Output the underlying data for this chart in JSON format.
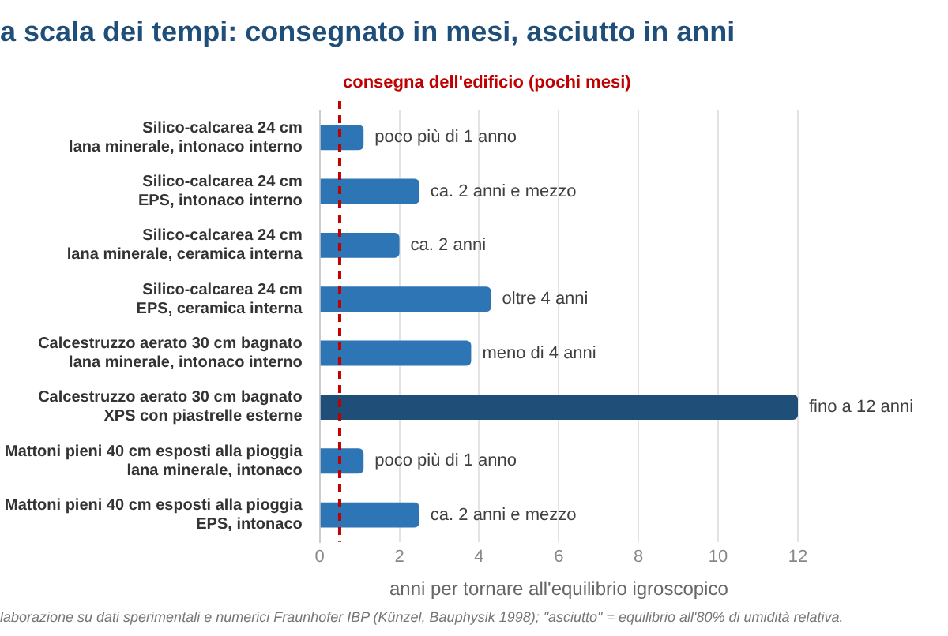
{
  "chart_data": {
    "type": "bar",
    "orientation": "horizontal",
    "title": "a scala dei tempi: consegnato in mesi, asciutto in anni",
    "categories": [
      "Silico-calcarea 24 cm\nlana minerale, intonaco interno",
      "Silico-calcarea 24 cm\nEPS, intonaco interno",
      "Silico-calcarea 24 cm\nlana minerale, ceramica interna",
      "Silico-calcarea 24 cm\nEPS, ceramica interna",
      "Calcestruzzo aerato 30 cm bagnato\nlana minerale, intonaco interno",
      "Calcestruzzo aerato 30 cm bagnato\nXPS con piastrelle esterne",
      "Mattoni pieni 40 cm esposti alla pioggia\nlana minerale, intonaco",
      "Mattoni pieni 40 cm esposti alla pioggia\nEPS, intonaco"
    ],
    "values": [
      1.1,
      2.5,
      2.0,
      4.3,
      3.8,
      12,
      1.1,
      2.5
    ],
    "colors": [
      "#2e75b6",
      "#2e75b6",
      "#2e75b6",
      "#2e75b6",
      "#2e75b6",
      "#1f4e79",
      "#2e75b6",
      "#2e75b6"
    ],
    "value_labels": [
      "poco più di 1 anno",
      "ca. 2 anni e mezzo",
      "ca. 2 anni",
      "oltre 4 anni",
      "meno di 4 anni",
      "fino a 12 anni",
      "poco più di 1 anno",
      "ca. 2 anni e mezzo"
    ],
    "xlabel": "anni per tornare all'equilibrio igroscopico",
    "xlim": [
      0,
      12
    ],
    "xticks": [
      0,
      2,
      4,
      6,
      8,
      10,
      12
    ],
    "grid": "x",
    "legend": false,
    "ref_lines": [
      {
        "axis": "x",
        "value": 0.5,
        "label": "consegna dell'edificio (pochi mesi)",
        "color": "#c00000",
        "line_style": "dashed"
      }
    ],
    "annotations": [
      "laborazione su dati sperimentali e numerici Fraunhofer IBP (Künzel, Bauphysik 1998); \"asciutto\" = equilibrio all'80% di umidità relativa."
    ]
  }
}
